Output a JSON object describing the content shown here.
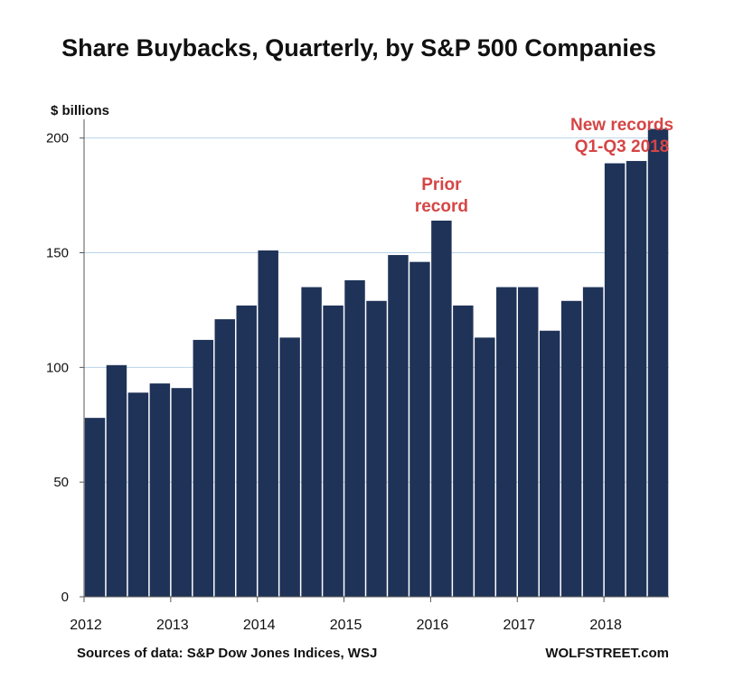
{
  "chart_data": {
    "type": "bar",
    "title": "Share Buybacks, Quarterly, by S&P 500 Companies",
    "ylabel": "$ billions",
    "ylim": [
      0,
      205
    ],
    "yticks": [
      0,
      50,
      100,
      150,
      200
    ],
    "grid": true,
    "bar_color": "#1f3358",
    "grid_color": "#b9d3ea",
    "annotation_color": "#d64545",
    "categories": [
      "Q1 2012",
      "Q2 2012",
      "Q3 2012",
      "Q4 2012",
      "Q1 2013",
      "Q2 2013",
      "Q3 2013",
      "Q4 2013",
      "Q1 2014",
      "Q2 2014",
      "Q3 2014",
      "Q4 2014",
      "Q1 2015",
      "Q2 2015",
      "Q3 2015",
      "Q4 2015",
      "Q1 2016",
      "Q2 2016",
      "Q3 2016",
      "Q4 2016",
      "Q1 2017",
      "Q2 2017",
      "Q3 2017",
      "Q4 2017",
      "Q1 2018",
      "Q2 2018",
      "Q3 2018"
    ],
    "values": [
      78,
      101,
      89,
      93,
      91,
      112,
      121,
      127,
      151,
      113,
      135,
      127,
      138,
      129,
      149,
      146,
      164,
      127,
      113,
      135,
      135,
      116,
      129,
      135,
      189,
      190,
      204
    ],
    "xtick_labels": [
      {
        "label": "2012",
        "index": 0
      },
      {
        "label": "2013",
        "index": 4
      },
      {
        "label": "2014",
        "index": 8
      },
      {
        "label": "2015",
        "index": 12
      },
      {
        "label": "2016",
        "index": 16
      },
      {
        "label": "2017",
        "index": 20
      },
      {
        "label": "2018",
        "index": 24
      }
    ],
    "annotations": [
      {
        "lines": [
          "Prior",
          "record"
        ],
        "index": 16
      },
      {
        "lines": [
          "New records",
          "Q1-Q3 2018"
        ],
        "index": 25
      }
    ]
  },
  "footer": {
    "source": "Sources of data: S&P Dow Jones Indices, WSJ",
    "brand": "WOLFSTREET.com"
  }
}
